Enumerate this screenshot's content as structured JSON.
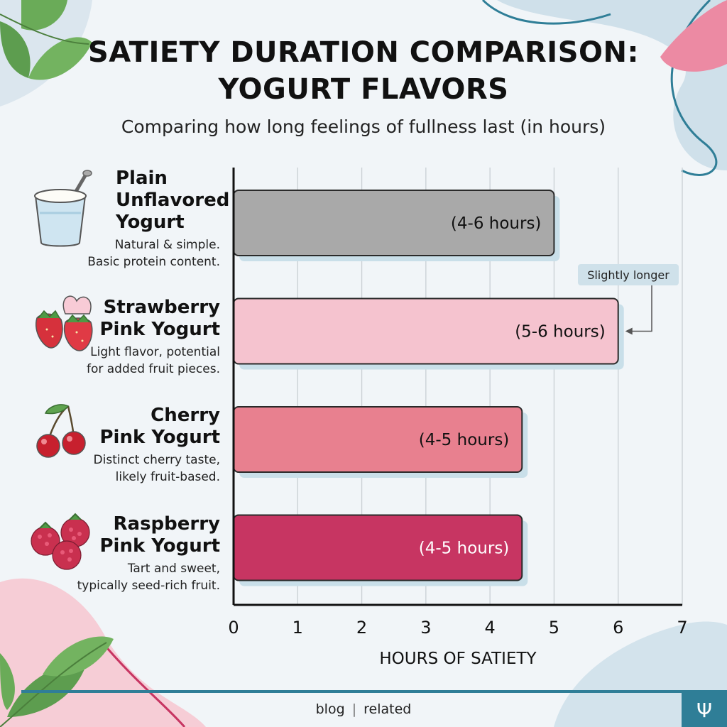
{
  "header": {
    "title_line1": "SATIETY DURATION COMPARISON:",
    "title_line2": "YOGURT FLAVORS",
    "subtitle": "Comparing how long feelings of fullness last (in hours)"
  },
  "categories": [
    {
      "name_lines": [
        "Plain",
        "Unflavored",
        "Yogurt"
      ],
      "desc_lines": [
        "Natural & simple.",
        "Basic protein content."
      ],
      "icon": "yogurt-cup-icon"
    },
    {
      "name_lines": [
        "Strawberry",
        "Pink Yogurt"
      ],
      "desc_lines": [
        "Light flavor, potential",
        "for added fruit pieces."
      ],
      "icon": "strawberry-icon"
    },
    {
      "name_lines": [
        "Cherry",
        "Pink Yogurt"
      ],
      "desc_lines": [
        "Distinct cherry taste,",
        "likely fruit-based."
      ],
      "icon": "cherry-icon"
    },
    {
      "name_lines": [
        "Raspberry",
        "Pink Yogurt"
      ],
      "desc_lines": [
        "Tart and sweet,",
        "typically seed-rich fruit."
      ],
      "icon": "raspberry-icon"
    }
  ],
  "chart_data": {
    "type": "bar",
    "orientation": "horizontal",
    "categories": [
      "Plain Unflavored Yogurt",
      "Strawberry Pink Yogurt",
      "Cherry Pink Yogurt",
      "Raspberry Pink Yogurt"
    ],
    "values": [
      5,
      6,
      4.5,
      4.5
    ],
    "data_labels": [
      "(4-6 hours)",
      "(5-6 hours)",
      "(4-5 hours)",
      "(4-5 hours)"
    ],
    "bar_colors": [
      "#a9a9a9",
      "#f5c3cf",
      "#e8808f",
      "#c73562"
    ],
    "label_colors": [
      "#111111",
      "#111111",
      "#111111",
      "#ffffff"
    ],
    "xlabel": "HOURS OF SATIETY",
    "xlim": [
      0,
      7
    ],
    "xticks": [
      0,
      1,
      2,
      3,
      4,
      5,
      6,
      7
    ],
    "grid": true,
    "annotation": {
      "text": "Slightly longer",
      "target_index": 1
    }
  },
  "footer": {
    "left": "blog",
    "separator": "|",
    "right": "related"
  },
  "colors": {
    "background": "#f1f5f8",
    "accent": "#2f7e97"
  }
}
